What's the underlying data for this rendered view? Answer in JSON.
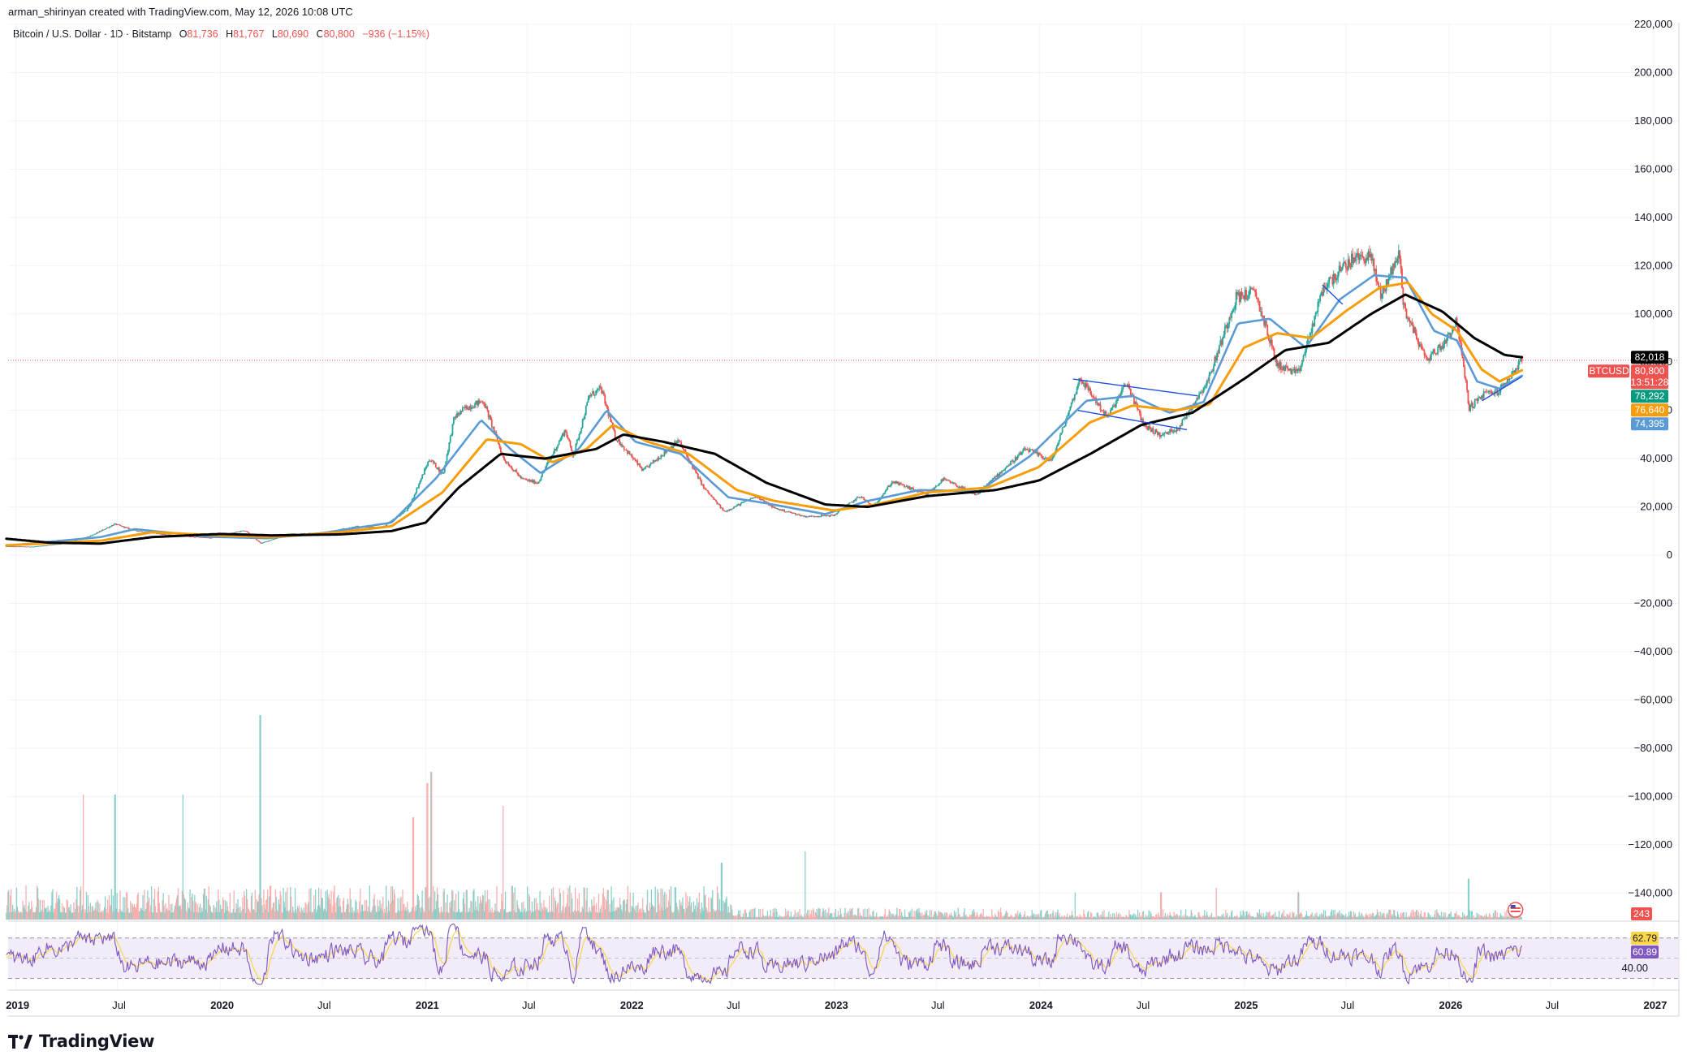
{
  "header": {
    "credit": "arman_shirinyan created with TradingView.com, May 12, 2026 10:08 UTC",
    "symbol": "Bitcoin / U.S. Dollar · 1D · Bitstamp",
    "o_label": "O",
    "o_value": "81,736",
    "h_label": "H",
    "h_value": "81,767",
    "l_label": "L",
    "l_value": "80,690",
    "c_label": "C",
    "c_value": "80,800",
    "change": "−936 (−1.15%)"
  },
  "brand": {
    "name": "TradingView"
  },
  "colors": {
    "up": "#26a69a",
    "down": "#ef5350",
    "ma_fast": "#5b9bd5",
    "ma_mid": "#f59d0b",
    "ma_slow": "#000000",
    "rsi": "#7e57c2",
    "rsi_ma": "#f9d648",
    "rsi_band": "#ede7f6",
    "price_line": "#ef5350"
  },
  "chart_data": {
    "type": "candlestick",
    "symbol": "BTCUSD",
    "y_axis": {
      "ylim": [
        -150000,
        220000
      ],
      "ticks": [
        {
          "v": 220000,
          "label": "220,000"
        },
        {
          "v": 200000,
          "label": "200,000"
        },
        {
          "v": 180000,
          "label": "180,000"
        },
        {
          "v": 160000,
          "label": "160,000"
        },
        {
          "v": 140000,
          "label": "140,000"
        },
        {
          "v": 120000,
          "label": "120,000"
        },
        {
          "v": 100000,
          "label": "100,000"
        },
        {
          "v": 80000,
          "label": "80,000"
        },
        {
          "v": 60000,
          "label": "60,000"
        },
        {
          "v": 40000,
          "label": "40,000"
        },
        {
          "v": 20000,
          "label": "20,000"
        },
        {
          "v": 0,
          "label": "0"
        },
        {
          "v": -20000,
          "label": "−20,000"
        },
        {
          "v": -40000,
          "label": "−40,000"
        },
        {
          "v": -60000,
          "label": "−60,000"
        },
        {
          "v": -80000,
          "label": "−80,000"
        },
        {
          "v": -100000,
          "label": "−100,000"
        },
        {
          "v": -120000,
          "label": "−120,000"
        },
        {
          "v": -140000,
          "label": "−140,000"
        }
      ]
    },
    "x_axis": {
      "xlim": [
        "2019-01-01",
        "2027-01-31"
      ],
      "ticks": [
        {
          "d": "2019-01-01",
          "label": "2019"
        },
        {
          "d": "2019-07-01",
          "label": "Jul"
        },
        {
          "d": "2020-01-01",
          "label": "2020"
        },
        {
          "d": "2020-07-01",
          "label": "Jul"
        },
        {
          "d": "2021-01-01",
          "label": "2021"
        },
        {
          "d": "2021-07-01",
          "label": "Jul"
        },
        {
          "d": "2022-01-01",
          "label": "2022"
        },
        {
          "d": "2022-07-01",
          "label": "Jul"
        },
        {
          "d": "2023-01-01",
          "label": "2023"
        },
        {
          "d": "2023-07-01",
          "label": "Jul"
        },
        {
          "d": "2024-01-01",
          "label": "2024"
        },
        {
          "d": "2024-07-01",
          "label": "Jul"
        },
        {
          "d": "2025-01-01",
          "label": "2025"
        },
        {
          "d": "2025-07-01",
          "label": "Jul"
        },
        {
          "d": "2026-01-01",
          "label": "2026"
        },
        {
          "d": "2026-07-01",
          "label": "Jul"
        },
        {
          "d": "2027-01-01",
          "label": "2027"
        }
      ]
    },
    "price_path": [
      [
        "2018-12-15",
        3600
      ],
      [
        "2019-02-01",
        3500
      ],
      [
        "2019-04-01",
        5000
      ],
      [
        "2019-05-15",
        8000
      ],
      [
        "2019-06-26",
        12900
      ],
      [
        "2019-08-01",
        10200
      ],
      [
        "2019-10-01",
        8300
      ],
      [
        "2019-12-15",
        7100
      ],
      [
        "2020-02-13",
        10300
      ],
      [
        "2020-03-13",
        4900
      ],
      [
        "2020-05-01",
        8800
      ],
      [
        "2020-07-01",
        9200
      ],
      [
        "2020-09-01",
        11900
      ],
      [
        "2020-10-15",
        11400
      ],
      [
        "2020-12-01",
        19200
      ],
      [
        "2021-01-08",
        40000
      ],
      [
        "2021-02-01",
        33500
      ],
      [
        "2021-02-21",
        57000
      ],
      [
        "2021-03-13",
        61000
      ],
      [
        "2021-04-14",
        64000
      ],
      [
        "2021-05-20",
        40000
      ],
      [
        "2021-06-22",
        31500
      ],
      [
        "2021-07-20",
        30000
      ],
      [
        "2021-09-07",
        52000
      ],
      [
        "2021-09-21",
        41000
      ],
      [
        "2021-10-20",
        66000
      ],
      [
        "2021-11-10",
        69000
      ],
      [
        "2021-12-05",
        49000
      ],
      [
        "2022-01-24",
        35000
      ],
      [
        "2022-03-28",
        47500
      ],
      [
        "2022-05-12",
        28000
      ],
      [
        "2022-06-18",
        18000
      ],
      [
        "2022-08-14",
        24500
      ],
      [
        "2022-09-15",
        19500
      ],
      [
        "2022-11-09",
        16000
      ],
      [
        "2022-12-30",
        16500
      ],
      [
        "2023-02-15",
        24500
      ],
      [
        "2023-03-10",
        20000
      ],
      [
        "2023-04-14",
        30500
      ],
      [
        "2023-06-15",
        25000
      ],
      [
        "2023-07-13",
        31500
      ],
      [
        "2023-09-11",
        25000
      ],
      [
        "2023-10-24",
        34500
      ],
      [
        "2023-12-08",
        44000
      ],
      [
        "2024-01-23",
        39000
      ],
      [
        "2024-03-14",
        73500
      ],
      [
        "2024-05-01",
        57000
      ],
      [
        "2024-06-05",
        71500
      ],
      [
        "2024-07-05",
        54000
      ],
      [
        "2024-08-05",
        49500
      ],
      [
        "2024-09-06",
        53000
      ],
      [
        "2024-10-29",
        73000
      ],
      [
        "2024-12-17",
        107000
      ],
      [
        "2025-01-20",
        109000
      ],
      [
        "2025-02-28",
        79000
      ],
      [
        "2025-04-07",
        75000
      ],
      [
        "2025-05-22",
        111000
      ],
      [
        "2025-07-14",
        123000
      ],
      [
        "2025-08-14",
        124000
      ],
      [
        "2025-09-01",
        107500
      ],
      [
        "2025-10-06",
        126000
      ],
      [
        "2025-10-10",
        104000
      ],
      [
        "2025-11-21",
        81000
      ],
      [
        "2025-12-20",
        87000
      ],
      [
        "2026-01-15",
        97000
      ],
      [
        "2026-02-06",
        61000
      ],
      [
        "2026-03-05",
        67000
      ],
      [
        "2026-04-01",
        68000
      ],
      [
        "2026-05-11",
        80800
      ]
    ],
    "moving_averages": [
      {
        "color": "#5b9bd5",
        "last": 74395,
        "points": [
          [
            "2018-12-15",
            3900
          ],
          [
            "2019-06-01",
            7500
          ],
          [
            "2019-08-01",
            10800
          ],
          [
            "2019-12-15",
            7600
          ],
          [
            "2020-03-25",
            7000
          ],
          [
            "2020-07-01",
            9200
          ],
          [
            "2020-11-01",
            13500
          ],
          [
            "2021-01-20",
            32000
          ],
          [
            "2021-04-10",
            56000
          ],
          [
            "2021-06-01",
            44000
          ],
          [
            "2021-07-25",
            34000
          ],
          [
            "2021-10-01",
            44000
          ],
          [
            "2021-11-20",
            60000
          ],
          [
            "2022-01-10",
            47000
          ],
          [
            "2022-04-01",
            42000
          ],
          [
            "2022-06-25",
            24000
          ],
          [
            "2022-09-01",
            21500
          ],
          [
            "2022-12-15",
            17000
          ],
          [
            "2023-03-01",
            22500
          ],
          [
            "2023-06-01",
            27000
          ],
          [
            "2023-09-15",
            26500
          ],
          [
            "2023-12-15",
            41000
          ],
          [
            "2024-03-25",
            64000
          ],
          [
            "2024-06-15",
            66000
          ],
          [
            "2024-08-20",
            59000
          ],
          [
            "2024-10-20",
            63500
          ],
          [
            "2024-12-20",
            96000
          ],
          [
            "2025-02-15",
            98000
          ],
          [
            "2025-04-20",
            86000
          ],
          [
            "2025-06-20",
            106000
          ],
          [
            "2025-08-20",
            116000
          ],
          [
            "2025-10-15",
            115000
          ],
          [
            "2025-12-05",
            93000
          ],
          [
            "2026-01-15",
            89000
          ],
          [
            "2026-02-20",
            72000
          ],
          [
            "2026-04-01",
            69000
          ],
          [
            "2026-05-11",
            74395
          ]
        ]
      },
      {
        "color": "#f59d0b",
        "last": 76640,
        "points": [
          [
            "2018-12-15",
            4100
          ],
          [
            "2019-06-01",
            6000
          ],
          [
            "2019-09-01",
            9500
          ],
          [
            "2019-12-31",
            8200
          ],
          [
            "2020-04-01",
            7500
          ],
          [
            "2020-08-01",
            9500
          ],
          [
            "2020-11-01",
            12000
          ],
          [
            "2021-01-31",
            26000
          ],
          [
            "2021-04-20",
            48000
          ],
          [
            "2021-06-20",
            46000
          ],
          [
            "2021-08-15",
            38500
          ],
          [
            "2021-10-15",
            44000
          ],
          [
            "2021-12-01",
            54000
          ],
          [
            "2022-02-01",
            47000
          ],
          [
            "2022-04-15",
            42000
          ],
          [
            "2022-07-10",
            27000
          ],
          [
            "2022-09-15",
            22500
          ],
          [
            "2022-12-31",
            18500
          ],
          [
            "2023-03-15",
            21000
          ],
          [
            "2023-06-15",
            26000
          ],
          [
            "2023-10-01",
            28000
          ],
          [
            "2023-12-31",
            36500
          ],
          [
            "2024-03-31",
            55000
          ],
          [
            "2024-06-15",
            62000
          ],
          [
            "2024-08-31",
            60000
          ],
          [
            "2024-10-31",
            62500
          ],
          [
            "2024-12-31",
            86000
          ],
          [
            "2025-02-28",
            92000
          ],
          [
            "2025-04-30",
            90000
          ],
          [
            "2025-06-30",
            101000
          ],
          [
            "2025-08-31",
            111000
          ],
          [
            "2025-10-20",
            113000
          ],
          [
            "2025-12-01",
            100000
          ],
          [
            "2026-01-15",
            93000
          ],
          [
            "2026-02-28",
            77000
          ],
          [
            "2026-04-01",
            72000
          ],
          [
            "2026-05-11",
            76640
          ]
        ]
      },
      {
        "color": "#000000",
        "last": 82018,
        "points": [
          [
            "2018-12-15",
            6800
          ],
          [
            "2019-03-01",
            5200
          ],
          [
            "2019-06-01",
            4800
          ],
          [
            "2019-09-01",
            7500
          ],
          [
            "2019-12-31",
            8800
          ],
          [
            "2020-04-01",
            8200
          ],
          [
            "2020-08-01",
            8600
          ],
          [
            "2020-11-01",
            10000
          ],
          [
            "2021-01-01",
            13500
          ],
          [
            "2021-03-01",
            28000
          ],
          [
            "2021-05-15",
            42000
          ],
          [
            "2021-08-01",
            40000
          ],
          [
            "2021-11-01",
            44000
          ],
          [
            "2021-12-20",
            50000
          ],
          [
            "2022-03-01",
            47000
          ],
          [
            "2022-06-01",
            42000
          ],
          [
            "2022-09-01",
            30000
          ],
          [
            "2022-12-15",
            21000
          ],
          [
            "2023-03-01",
            20000
          ],
          [
            "2023-06-15",
            24500
          ],
          [
            "2023-10-15",
            27000
          ],
          [
            "2024-01-01",
            31000
          ],
          [
            "2024-04-01",
            42000
          ],
          [
            "2024-07-01",
            54000
          ],
          [
            "2024-09-30",
            59000
          ],
          [
            "2024-12-31",
            73000
          ],
          [
            "2025-03-15",
            85000
          ],
          [
            "2025-05-31",
            88000
          ],
          [
            "2025-08-15",
            100000
          ],
          [
            "2025-10-15",
            108000
          ],
          [
            "2025-12-20",
            101000
          ],
          [
            "2026-02-15",
            90000
          ],
          [
            "2026-04-10",
            83000
          ],
          [
            "2026-05-11",
            82018
          ]
        ]
      }
    ],
    "trendlines": [
      {
        "color": "#1e50dc",
        "from": [
          "2024-03-01",
          73000
        ],
        "to": [
          "2024-10-10",
          66000
        ]
      },
      {
        "color": "#1e50dc",
        "from": [
          "2024-03-10",
          60000
        ],
        "to": [
          "2024-09-20",
          52000
        ]
      },
      {
        "color": "#1e50dc",
        "from": [
          "2025-05-20",
          112000
        ],
        "to": [
          "2025-06-25",
          104000
        ]
      },
      {
        "color": "#1e50dc",
        "from": [
          "2026-03-01",
          64000
        ],
        "to": [
          "2026-05-11",
          74000
        ]
      }
    ],
    "badges": [
      {
        "value": 82018,
        "label": "82,018",
        "bg": "#000000"
      },
      {
        "value": 80800,
        "label": "80,800",
        "sub": "13:51:28",
        "bg": "#ef5350",
        "tag": "BTCUSD"
      },
      {
        "value": 78292,
        "label": "78,292",
        "bg": "#089981"
      },
      {
        "value": 76640,
        "label": "76,640",
        "bg": "#f59d0b"
      },
      {
        "value": 74395,
        "label": "74,395",
        "bg": "#5b9bd5"
      }
    ],
    "volume": {
      "last_label": "243",
      "spikes": [
        [
          "2019-05-01",
          0.55
        ],
        [
          "2019-06-27",
          0.55
        ],
        [
          "2019-10-26",
          0.55
        ],
        [
          "2020-03-12",
          0.9
        ],
        [
          "2020-03-13",
          0.85
        ],
        [
          "2020-12-10",
          0.45
        ],
        [
          "2021-01-04",
          0.6
        ],
        [
          "2021-01-11",
          0.65
        ],
        [
          "2021-05-19",
          0.5
        ],
        [
          "2022-06-13",
          0.25
        ],
        [
          "2022-11-09",
          0.3
        ],
        [
          "2024-03-05",
          0.12
        ],
        [
          "2024-08-05",
          0.12
        ],
        [
          "2024-11-12",
          0.14
        ],
        [
          "2025-04-07",
          0.12
        ],
        [
          "2026-02-05",
          0.18
        ]
      ]
    },
    "rsi": {
      "levels": {
        "upper": 70,
        "lower": 30,
        "mid": 50
      },
      "lower_label": "40.00",
      "rsi_label": "60.89",
      "rsi_ma_label": "62.79",
      "ylim": [
        20,
        85
      ]
    }
  }
}
